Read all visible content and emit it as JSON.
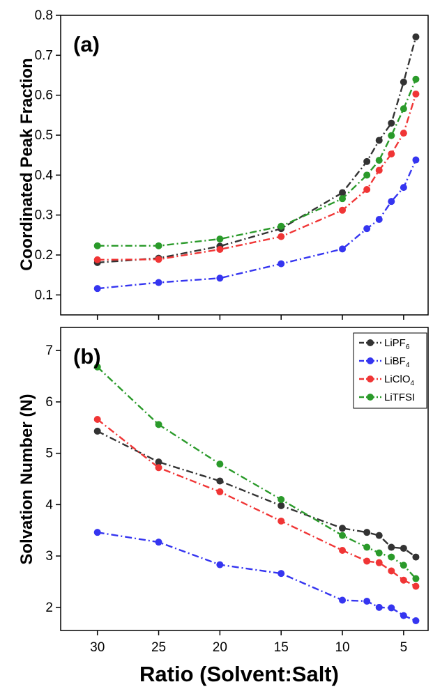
{
  "chart_data": [
    {
      "type": "line",
      "panel_label": "(a)",
      "ylabel": "Coordinated Peak Fraction",
      "xlabel": "",
      "ylim": [
        0.05,
        0.8
      ],
      "xlim": [
        33,
        3
      ],
      "xticks": [
        30,
        25,
        20,
        15,
        10,
        5
      ],
      "yticks": [
        "0.1",
        "0.2",
        "0.3",
        "0.4",
        "0.5",
        "0.6",
        "0.7",
        "0.8"
      ],
      "yticks_num": [
        0.1,
        0.2,
        0.3,
        0.4,
        0.5,
        0.6,
        0.7,
        0.8
      ],
      "x": [
        30,
        25,
        20,
        15,
        10,
        8,
        7,
        6,
        5,
        4
      ],
      "series": [
        {
          "name": "LiPF6",
          "color": "#333333",
          "values": [
            0.181,
            0.192,
            0.222,
            0.266,
            0.356,
            0.434,
            0.487,
            0.53,
            0.633,
            0.746
          ]
        },
        {
          "name": "LiBF4",
          "color": "#3535f0",
          "values": [
            0.116,
            0.131,
            0.142,
            0.178,
            0.215,
            0.266,
            0.289,
            0.334,
            0.369,
            0.438
          ]
        },
        {
          "name": "LiClO4",
          "color": "#f03535",
          "values": [
            0.188,
            0.189,
            0.214,
            0.246,
            0.312,
            0.364,
            0.412,
            0.453,
            0.505,
            0.603
          ]
        },
        {
          "name": "LiTFSI",
          "color": "#2a9a2a",
          "values": [
            0.223,
            0.223,
            0.24,
            0.272,
            0.341,
            0.4,
            0.437,
            0.499,
            0.566,
            0.64
          ]
        }
      ]
    },
    {
      "type": "line",
      "panel_label": "(b)",
      "ylabel": "Solvation Number (N)",
      "xlabel": "Ratio (Solvent:Salt)",
      "ylim": [
        1.55,
        7.45
      ],
      "xlim": [
        33,
        3
      ],
      "xticks": [
        30,
        25,
        20,
        15,
        10,
        5
      ],
      "yticks": [
        "2",
        "3",
        "4",
        "5",
        "6",
        "7"
      ],
      "yticks_num": [
        2,
        3,
        4,
        5,
        6,
        7
      ],
      "legend_placement": "top-right",
      "x": [
        30,
        25,
        20,
        15,
        10,
        8,
        7,
        6,
        5,
        4
      ],
      "series": [
        {
          "name": "LiPF6",
          "color": "#333333",
          "values": [
            5.43,
            4.83,
            4.46,
            3.98,
            3.54,
            3.46,
            3.4,
            3.17,
            3.15,
            2.98
          ]
        },
        {
          "name": "LiBF4",
          "color": "#3535f0",
          "values": [
            3.46,
            3.27,
            2.83,
            2.66,
            2.14,
            2.12,
            2.0,
            1.99,
            1.84,
            1.74
          ]
        },
        {
          "name": "LiClO4",
          "color": "#f03535",
          "values": [
            5.66,
            4.72,
            4.25,
            3.68,
            3.11,
            2.9,
            2.87,
            2.71,
            2.53,
            2.41
          ]
        },
        {
          "name": "LiTFSI",
          "color": "#2a9a2a",
          "values": [
            6.68,
            5.56,
            4.79,
            4.1,
            3.4,
            3.17,
            3.06,
            2.98,
            2.82,
            2.56
          ]
        }
      ]
    }
  ],
  "legend": [
    {
      "base": "LiPF",
      "sub": "6"
    },
    {
      "base": "LiBF",
      "sub": "4"
    },
    {
      "base": "LiClO",
      "sub": "4"
    },
    {
      "base": "LiTFSI",
      "sub": ""
    }
  ]
}
